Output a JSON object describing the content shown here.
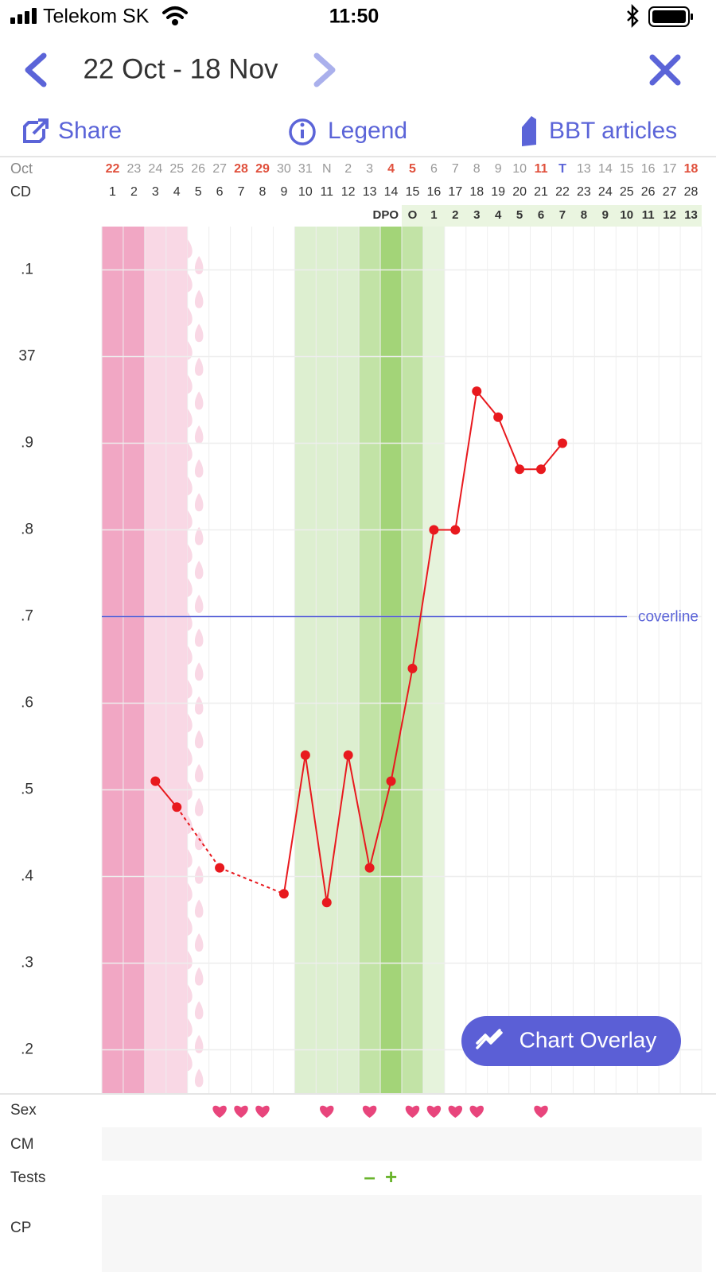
{
  "status_bar": {
    "carrier": "Telekom SK",
    "time": "11:50"
  },
  "header": {
    "title": "22 Oct - 18 Nov"
  },
  "toolbar": {
    "share": "Share",
    "legend": "Legend",
    "articles": "BBT articles"
  },
  "chart_data": {
    "type": "line",
    "month_label": "Oct",
    "dates": [
      "22",
      "23",
      "24",
      "25",
      "26",
      "27",
      "28",
      "29",
      "30",
      "31",
      "N",
      "2",
      "3",
      "4",
      "5",
      "6",
      "7",
      "8",
      "9",
      "10",
      "11",
      "T",
      "13",
      "14",
      "15",
      "16",
      "17",
      "18"
    ],
    "date_colors": [
      "#e0503c",
      "#999999",
      "#999999",
      "#999999",
      "#999999",
      "#999999",
      "#e0503c",
      "#e0503c",
      "#999999",
      "#999999",
      "#999999",
      "#999999",
      "#999999",
      "#e0503c",
      "#e0503c",
      "#999999",
      "#999999",
      "#999999",
      "#999999",
      "#999999",
      "#e0503c",
      "#5b64d8",
      "#999999",
      "#999999",
      "#999999",
      "#999999",
      "#999999",
      "#e0503c"
    ],
    "cd_label": "CD",
    "categories": [
      1,
      2,
      3,
      4,
      5,
      6,
      7,
      8,
      9,
      10,
      11,
      12,
      13,
      14,
      15,
      16,
      17,
      18,
      19,
      20,
      21,
      22,
      23,
      24,
      25,
      26,
      27,
      28
    ],
    "dpo_label": "DPO",
    "dpo": [
      "O",
      "1",
      "2",
      "3",
      "4",
      "5",
      "6",
      "7",
      "8",
      "9",
      "10",
      "11",
      "12",
      "13"
    ],
    "values": [
      null,
      null,
      36.51,
      36.48,
      null,
      36.41,
      null,
      null,
      36.38,
      36.54,
      36.37,
      36.54,
      36.41,
      36.51,
      36.64,
      36.8,
      36.8,
      36.96,
      36.93,
      36.87,
      36.87,
      36.9,
      null,
      null,
      null,
      null,
      null,
      null
    ],
    "color": "#e8191e",
    "ylim": [
      36.15,
      37.15
    ],
    "yticks": [
      {
        "value": 37.1,
        "label": ".1"
      },
      37,
      {
        "value": 36.9,
        "label": ".9"
      },
      {
        "value": 36.8,
        "label": ".8"
      },
      {
        "value": 36.7,
        "label": ".7"
      },
      {
        "value": 36.6,
        "label": ".6"
      },
      {
        "value": 36.5,
        "label": ".5"
      },
      {
        "value": 36.4,
        "label": ".4"
      },
      {
        "value": 36.3,
        "label": ".3"
      },
      {
        "value": 36.2,
        "label": ".2"
      }
    ],
    "grid": true,
    "coverline": {
      "value": 36.7,
      "label": "coverline",
      "color": "#5b64d8"
    }
  },
  "rows": {
    "sex": "Sex",
    "cm": "CM",
    "tests": "Tests",
    "cp": "CP"
  },
  "sex_days": [
    6,
    7,
    8,
    11,
    13,
    15,
    16,
    17,
    18,
    21
  ],
  "tests": [
    {
      "day": 13,
      "label": "–"
    },
    {
      "day": 14,
      "label": "+"
    }
  ],
  "button": "Chart Overlay"
}
